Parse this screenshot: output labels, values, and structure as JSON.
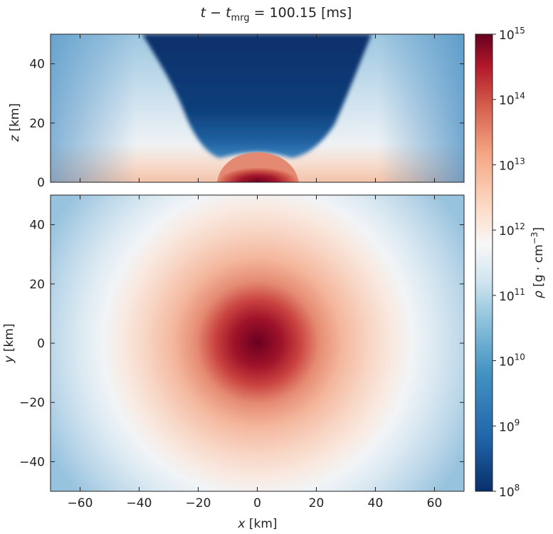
{
  "chart_data": {
    "type": "heatmap",
    "title": {
      "lhs_t": "t",
      "minus": " − ",
      "lhs_t2": "t",
      "sub": "mrg",
      "equals": " = 100.15 [ms]"
    },
    "colorbar": {
      "label": {
        "rho": "ρ",
        "unit_prefix": " [g · cm",
        "exp": "−3",
        "unit_suffix": "]"
      },
      "scale": "log",
      "range_exponents": [
        8,
        15
      ],
      "tick_base": "10",
      "tick_exponents": [
        "8",
        "9",
        "10",
        "11",
        "12",
        "13",
        "14",
        "15"
      ],
      "colormap": [
        "#08306b",
        "#2166ac",
        "#4393c3",
        "#92c5de",
        "#d1e5f0",
        "#f7f7f7",
        "#fddbc7",
        "#f4a582",
        "#d6604d",
        "#b2182b",
        "#67001f"
      ]
    },
    "panels": [
      {
        "id": "xz",
        "ylabel_var": "z",
        "ylabel_unit": " [km]",
        "xlim": [
          -70,
          70
        ],
        "ylim": [
          0,
          50
        ],
        "yticks": [
          "0",
          "20",
          "40"
        ],
        "ytick_values": [
          0,
          20,
          40
        ],
        "show_xticklabels": false
      },
      {
        "id": "xy",
        "ylabel_var": "y",
        "ylabel_unit": " [km]",
        "xlabel_var": "x",
        "xlabel_unit": " [km]",
        "xlim": [
          -70,
          70
        ],
        "ylim": [
          -50,
          50
        ],
        "yticks": [
          "−40",
          "−20",
          "0",
          "20",
          "40"
        ],
        "ytick_values": [
          -40,
          -20,
          0,
          20,
          40
        ],
        "xticks": [
          "−60",
          "−40",
          "−20",
          "0",
          "20",
          "40",
          "60"
        ],
        "xtick_values": [
          -60,
          -40,
          -20,
          0,
          20,
          40,
          60
        ],
        "show_xticklabels": true
      }
    ]
  }
}
